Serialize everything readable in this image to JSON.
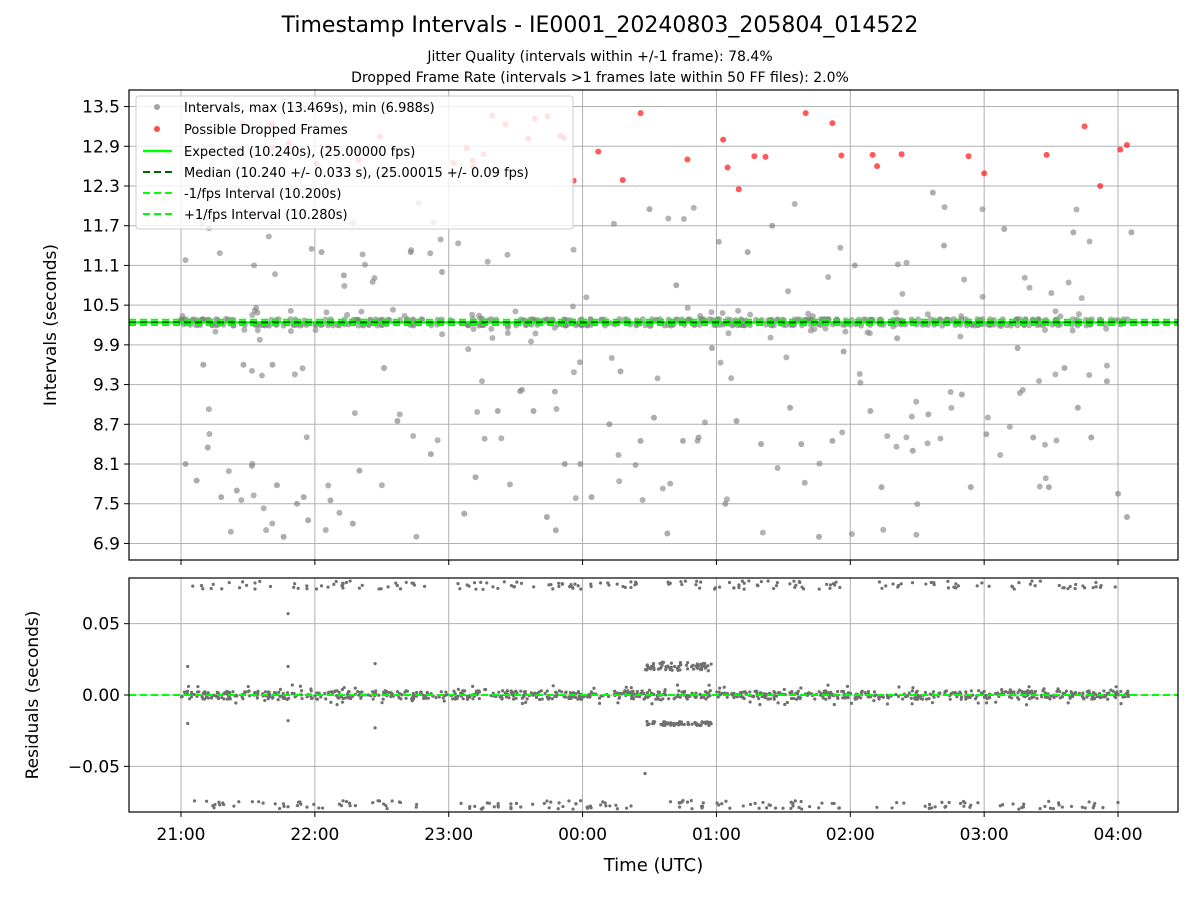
{
  "chart_data": [
    {
      "type": "scatter",
      "title": "Timestamp Intervals - IE0001_20240803_205804_014522",
      "subtitle_1": "Jitter Quality (intervals within +/-1 frame): 78.4%",
      "subtitle_2": "Dropped Frame Rate (intervals >1 frames late within 50 FF files): 2.0%",
      "ylabel": "Intervals (seconds)",
      "ylim": [
        6.65,
        13.75
      ],
      "yticks": [
        6.9,
        7.5,
        8.1,
        8.7,
        9.3,
        9.9,
        10.5,
        11.1,
        11.7,
        12.3,
        12.9,
        13.5
      ],
      "ytick_labels": [
        "6.9",
        "7.5",
        "8.1",
        "8.7",
        "9.3",
        "9.9",
        "10.5",
        "11.1",
        "11.7",
        "12.3",
        "12.9",
        "13.5"
      ],
      "x_time_ticks": [
        "21:00",
        "22:00",
        "23:00",
        "00:00",
        "01:00",
        "02:00",
        "03:00",
        "04:00"
      ],
      "grid": true,
      "legend_position": "upper-left",
      "legend": [
        "Intervals, max (13.469s), min (6.988s)",
        "Possible Dropped Frames",
        "Expected (10.240s), (25.00000 fps)",
        "Median (10.240 +/- 0.033 s), (25.00015 +/- 0.09 fps)",
        "-1/fps Interval (10.200s)",
        "+1/fps Interval (10.280s)"
      ],
      "colors": {
        "intervals": "#808080",
        "dropped": "#ff0000",
        "expected": "#00ff00",
        "median": "#006400",
        "fps_bounds": "#00ff00"
      },
      "reference_lines": {
        "expected": 10.24,
        "median": 10.24,
        "minus_fps": 10.2,
        "plus_fps": 10.28
      },
      "series": [
        {
          "name": "Possible Dropped Frames",
          "points": [
            [
              "23:56",
              12.38
            ],
            [
              "00:07",
              12.82
            ],
            [
              "00:18",
              12.39
            ],
            [
              "00:26",
              13.4
            ],
            [
              "00:47",
              12.7
            ],
            [
              "01:03",
              13.0
            ],
            [
              "01:05",
              12.58
            ],
            [
              "01:10",
              12.25
            ],
            [
              "01:17",
              12.75
            ],
            [
              "01:22",
              12.74
            ],
            [
              "01:40",
              13.4
            ],
            [
              "01:52",
              13.25
            ],
            [
              "01:56",
              12.76
            ],
            [
              "02:10",
              12.77
            ],
            [
              "02:12",
              12.6
            ],
            [
              "02:23",
              12.78
            ],
            [
              "02:53",
              12.75
            ],
            [
              "03:00",
              12.49
            ],
            [
              "03:28",
              12.77
            ],
            [
              "03:45",
              13.2
            ],
            [
              "03:52",
              12.3
            ],
            [
              "04:01",
              12.85
            ],
            [
              "04:04",
              12.92
            ]
          ]
        },
        {
          "name": "Intervals, max (13.469s), min (6.988s)",
          "points": [
            [
              "21:02",
              8.1
            ],
            [
              "21:07",
              7.85
            ],
            [
              "21:10",
              9.6
            ],
            [
              "21:12",
              8.35
            ],
            [
              "21:18",
              7.6
            ],
            [
              "21:25",
              7.7
            ],
            [
              "21:28",
              9.6
            ],
            [
              "21:41",
              9.6
            ],
            [
              "21:43",
              7.78
            ],
            [
              "21:46",
              7.0
            ],
            [
              "21:52",
              7.5
            ],
            [
              "21:55",
              7.6
            ],
            [
              "21:57",
              7.25
            ],
            [
              "22:03",
              11.3
            ],
            [
              "22:07",
              7.55
            ],
            [
              "22:13",
              10.95
            ],
            [
              "22:17",
              7.2
            ],
            [
              "22:20",
              8.0
            ],
            [
              "22:31",
              9.55
            ],
            [
              "22:37",
              8.75
            ],
            [
              "22:43",
              11.3
            ],
            [
              "22:52",
              8.25
            ],
            [
              "22:57",
              11.0
            ],
            [
              "23:07",
              7.35
            ],
            [
              "23:12",
              7.9
            ],
            [
              "23:22",
              8.9
            ],
            [
              "23:32",
              9.2
            ],
            [
              "23:38",
              8.9
            ],
            [
              "23:44",
              7.3
            ],
            [
              "23:48",
              7.1
            ],
            [
              "23:52",
              8.1
            ],
            [
              "23:59",
              8.1
            ],
            [
              "00:04",
              7.6
            ],
            [
              "00:12",
              8.7
            ],
            [
              "00:17",
              9.5
            ],
            [
              "00:26",
              8.45
            ],
            [
              "00:32",
              8.8
            ],
            [
              "00:38",
              7.05
            ],
            [
              "00:45",
              8.45
            ],
            [
              "00:52",
              8.5
            ],
            [
              "00:58",
              9.85
            ],
            [
              "01:04",
              7.5
            ],
            [
              "01:09",
              8.75
            ],
            [
              "01:14",
              11.3
            ],
            [
              "01:20",
              8.4
            ],
            [
              "01:25",
              11.7
            ],
            [
              "01:33",
              8.95
            ],
            [
              "01:38",
              8.4
            ],
            [
              "01:46",
              7.0
            ],
            [
              "01:52",
              8.45
            ],
            [
              "01:57",
              9.8
            ],
            [
              "02:02",
              11.1
            ],
            [
              "02:09",
              8.9
            ],
            [
              "02:14",
              7.75
            ],
            [
              "02:21",
              10.0
            ],
            [
              "02:28",
              8.3
            ],
            [
              "02:35",
              8.85
            ],
            [
              "02:42",
              11.4
            ],
            [
              "02:50",
              9.15
            ],
            [
              "02:54",
              7.75
            ],
            [
              "03:01",
              8.55
            ],
            [
              "03:09",
              11.65
            ],
            [
              "03:15",
              9.85
            ],
            [
              "03:22",
              8.5
            ],
            [
              "03:29",
              7.75
            ],
            [
              "03:36",
              9.55
            ],
            [
              "03:42",
              8.95
            ],
            [
              "03:48",
              8.5
            ],
            [
              "03:55",
              9.35
            ],
            [
              "04:00",
              7.65
            ],
            [
              "04:04",
              7.3
            ],
            [
              "04:06",
              11.6
            ],
            [
              "00:30",
              11.95
            ],
            [
              "00:42",
              10.8
            ],
            [
              "02:37",
              12.2
            ],
            [
              "03:40",
              11.6
            ],
            [
              "22:53",
              11.75
            ]
          ]
        }
      ]
    },
    {
      "type": "scatter",
      "ylabel": "Residuals (seconds)",
      "xlabel": "Time (UTC)",
      "ylim": [
        -0.082,
        0.082
      ],
      "yticks": [
        -0.05,
        0.0,
        0.05
      ],
      "ytick_labels": [
        "−0.05",
        "0.00",
        "0.05"
      ],
      "x_time_ticks": [
        "21:00",
        "22:00",
        "23:00",
        "00:00",
        "01:00",
        "02:00",
        "03:00",
        "04:00"
      ],
      "grid": true,
      "zero_line_color": "#00ff00",
      "series": [
        {
          "name": "",
          "description_of_bands": [
            0.0,
            0.02,
            -0.02,
            0.08,
            -0.08,
            0.072,
            -0.072
          ]
        }
      ]
    }
  ]
}
